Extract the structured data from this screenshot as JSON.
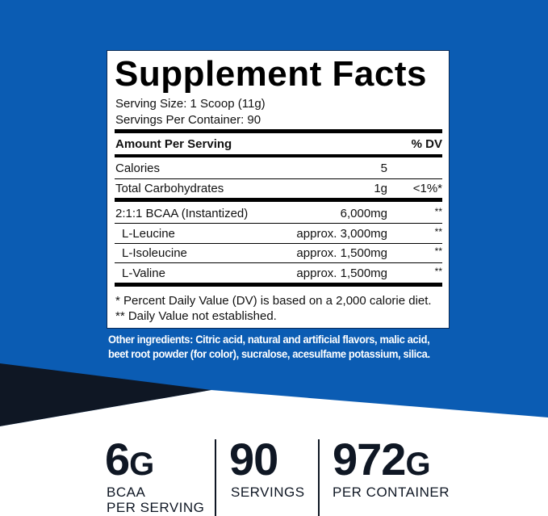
{
  "colors": {
    "background_blue": "#0b5cb3",
    "dark_navy": "#0f1724",
    "label_bg": "#ffffff"
  },
  "label": {
    "title": "Supplement Facts",
    "serving_size": "Serving Size: 1 Scoop (11g)",
    "servings_per_container": "Servings Per Container: 90",
    "header_amount": "Amount Per Serving",
    "header_dv": "% DV",
    "rows": [
      {
        "name": "Calories",
        "amount": "5",
        "dv": ""
      },
      {
        "name": "Total Carbohydrates",
        "amount": "1g",
        "dv": "<1%*"
      },
      {
        "name": "2:1:1 BCAA (Instantized)",
        "amount": "6,000mg",
        "dv": "**"
      },
      {
        "name": "L-Leucine",
        "amount": "approx. 3,000mg",
        "dv": "**"
      },
      {
        "name": "L-Isoleucine",
        "amount": "approx. 1,500mg",
        "dv": "**"
      },
      {
        "name": "L-Valine",
        "amount": "approx. 1,500mg",
        "dv": "**"
      }
    ],
    "footnote1": "* Percent Daily Value (DV) is based on a 2,000 calorie diet.",
    "footnote2": "** Daily Value not established."
  },
  "other_ingredients": {
    "line1": "Other ingredients: Citric acid, natural and artificial flavors, malic acid,",
    "line2": "beet root powder (for color), sucralose, acesulfame potassium, silica."
  },
  "stats": [
    {
      "value": "6",
      "unit": "G",
      "label1": "BCAA",
      "label2": "PER SERVING"
    },
    {
      "value": "90",
      "unit": "",
      "label1": "SERVINGS",
      "label2": ""
    },
    {
      "value": "972",
      "unit": "G",
      "label1": "PER CONTAINER",
      "label2": ""
    }
  ]
}
